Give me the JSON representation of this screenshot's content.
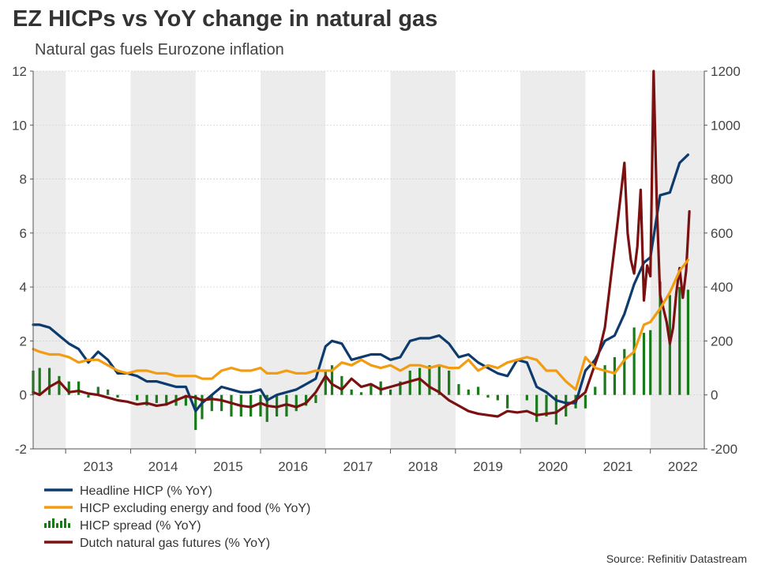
{
  "chart_data": {
    "type": "line",
    "title": "EZ HICPs vs YoY change in natural gas",
    "subtitle": "Natural gas fuels Eurozone inflation",
    "source": "Source: Refinitiv Datastream",
    "x_start": 2012.5,
    "x_end": 2022.83,
    "year_labels": [
      "2013",
      "2014",
      "2015",
      "2016",
      "2017",
      "2018",
      "2019",
      "2020",
      "2021",
      "2022"
    ],
    "shaded_years": [
      2012,
      2014,
      2016,
      2018,
      2020,
      2022
    ],
    "left_axis": {
      "ylim": [
        -2,
        12
      ],
      "ticks": [
        "-2",
        "0",
        "2",
        "4",
        "6",
        "8",
        "10",
        "12"
      ],
      "tick_values": [
        -2,
        0,
        2,
        4,
        6,
        8,
        10,
        12
      ]
    },
    "right_axis": {
      "ylim": [
        -200,
        1200
      ],
      "ticks": [
        "-200",
        "0",
        "200",
        "400",
        "600",
        "800",
        "1000",
        "1200"
      ],
      "tick_values": [
        -200,
        0,
        200,
        400,
        600,
        800,
        1000,
        1200
      ]
    },
    "series": [
      {
        "name": "Headline HICP (% YoY)",
        "axis": "left",
        "style": "line",
        "color": "#0d3b6e",
        "x": [
          2012.5,
          2012.6,
          2012.75,
          2012.9,
          2013.05,
          2013.2,
          2013.35,
          2013.5,
          2013.65,
          2013.8,
          2013.95,
          2014.1,
          2014.25,
          2014.4,
          2014.55,
          2014.7,
          2014.85,
          2015.0,
          2015.1,
          2015.25,
          2015.4,
          2015.55,
          2015.7,
          2015.85,
          2016.0,
          2016.1,
          2016.25,
          2016.4,
          2016.55,
          2016.7,
          2016.85,
          2017.0,
          2017.1,
          2017.25,
          2017.4,
          2017.55,
          2017.7,
          2017.85,
          2018.0,
          2018.15,
          2018.3,
          2018.45,
          2018.6,
          2018.75,
          2018.9,
          2019.05,
          2019.2,
          2019.35,
          2019.5,
          2019.65,
          2019.8,
          2019.95,
          2020.1,
          2020.25,
          2020.4,
          2020.55,
          2020.7,
          2020.85,
          2021.0,
          2021.15,
          2021.3,
          2021.45,
          2021.6,
          2021.75,
          2021.9,
          2022.0,
          2022.15,
          2022.3,
          2022.45,
          2022.58
        ],
        "values": [
          2.6,
          2.6,
          2.5,
          2.2,
          1.9,
          1.7,
          1.2,
          1.6,
          1.3,
          0.8,
          0.8,
          0.7,
          0.5,
          0.5,
          0.4,
          0.3,
          0.3,
          -0.6,
          -0.3,
          0.0,
          0.3,
          0.2,
          0.1,
          0.1,
          0.2,
          -0.2,
          0.0,
          0.1,
          0.2,
          0.4,
          0.6,
          1.8,
          2.0,
          1.9,
          1.3,
          1.4,
          1.5,
          1.5,
          1.3,
          1.4,
          2.0,
          2.1,
          2.1,
          2.2,
          1.9,
          1.4,
          1.5,
          1.2,
          1.0,
          0.8,
          0.7,
          1.3,
          1.2,
          0.3,
          0.1,
          -0.2,
          -0.3,
          -0.3,
          0.9,
          1.3,
          2.0,
          2.2,
          3.0,
          4.1,
          4.9,
          5.1,
          7.4,
          7.5,
          8.6,
          8.9
        ]
      },
      {
        "name": "HICP excluding energy and food (% YoY)",
        "axis": "left",
        "style": "line",
        "color": "#f39c12",
        "x": [
          2012.5,
          2012.6,
          2012.75,
          2012.9,
          2013.05,
          2013.2,
          2013.35,
          2013.5,
          2013.65,
          2013.8,
          2013.95,
          2014.1,
          2014.25,
          2014.4,
          2014.55,
          2014.7,
          2014.85,
          2015.0,
          2015.1,
          2015.25,
          2015.4,
          2015.55,
          2015.7,
          2015.85,
          2016.0,
          2016.1,
          2016.25,
          2016.4,
          2016.55,
          2016.7,
          2016.85,
          2017.0,
          2017.1,
          2017.25,
          2017.4,
          2017.55,
          2017.7,
          2017.85,
          2018.0,
          2018.15,
          2018.3,
          2018.45,
          2018.6,
          2018.75,
          2018.9,
          2019.05,
          2019.2,
          2019.35,
          2019.5,
          2019.65,
          2019.8,
          2019.95,
          2020.1,
          2020.25,
          2020.4,
          2020.55,
          2020.7,
          2020.85,
          2021.0,
          2021.15,
          2021.3,
          2021.45,
          2021.6,
          2021.75,
          2021.9,
          2022.0,
          2022.15,
          2022.3,
          2022.45,
          2022.58
        ],
        "values": [
          1.7,
          1.6,
          1.5,
          1.5,
          1.4,
          1.2,
          1.3,
          1.3,
          1.1,
          0.9,
          0.8,
          0.9,
          0.9,
          0.8,
          0.8,
          0.7,
          0.7,
          0.7,
          0.6,
          0.6,
          0.9,
          1.0,
          0.9,
          0.9,
          1.0,
          0.8,
          0.8,
          0.9,
          0.8,
          0.8,
          0.9,
          0.9,
          0.9,
          1.2,
          1.1,
          1.3,
          1.1,
          1.0,
          1.1,
          0.9,
          1.1,
          1.1,
          1.0,
          1.1,
          1.0,
          1.0,
          1.3,
          0.9,
          1.1,
          1.0,
          1.2,
          1.3,
          1.4,
          1.3,
          0.9,
          0.9,
          0.5,
          0.2,
          1.4,
          1.0,
          0.9,
          0.8,
          1.3,
          1.6,
          2.6,
          2.7,
          3.2,
          3.8,
          4.6,
          5.0
        ]
      },
      {
        "name": "HICP spread (% YoY)",
        "axis": "left",
        "style": "bar",
        "color": "#1a7a1a",
        "x": [
          2012.5,
          2012.6,
          2012.75,
          2012.9,
          2013.05,
          2013.2,
          2013.35,
          2013.5,
          2013.65,
          2013.8,
          2013.95,
          2014.1,
          2014.25,
          2014.4,
          2014.55,
          2014.7,
          2014.85,
          2015.0,
          2015.1,
          2015.25,
          2015.4,
          2015.55,
          2015.7,
          2015.85,
          2016.0,
          2016.1,
          2016.25,
          2016.4,
          2016.55,
          2016.7,
          2016.85,
          2017.0,
          2017.1,
          2017.25,
          2017.4,
          2017.55,
          2017.7,
          2017.85,
          2018.0,
          2018.15,
          2018.3,
          2018.45,
          2018.6,
          2018.75,
          2018.9,
          2019.05,
          2019.2,
          2019.35,
          2019.5,
          2019.65,
          2019.8,
          2019.95,
          2020.1,
          2020.25,
          2020.4,
          2020.55,
          2020.7,
          2020.85,
          2021.0,
          2021.15,
          2021.3,
          2021.45,
          2021.6,
          2021.75,
          2021.9,
          2022.0,
          2022.15,
          2022.3,
          2022.45,
          2022.58
        ],
        "values": [
          0.9,
          1.0,
          1.0,
          0.7,
          0.5,
          0.5,
          -0.1,
          0.3,
          0.2,
          -0.1,
          0.0,
          -0.2,
          -0.4,
          -0.3,
          -0.4,
          -0.4,
          -0.4,
          -1.3,
          -0.9,
          -0.6,
          -0.6,
          -0.8,
          -0.8,
          -0.8,
          -0.8,
          -1.0,
          -0.8,
          -0.8,
          -0.6,
          -0.4,
          -0.3,
          0.9,
          1.1,
          0.7,
          0.2,
          0.1,
          0.4,
          0.5,
          0.2,
          0.5,
          0.9,
          1.0,
          1.1,
          1.1,
          0.9,
          0.4,
          0.2,
          0.3,
          -0.1,
          -0.2,
          -0.5,
          0.0,
          -0.2,
          -1.0,
          -0.8,
          -1.1,
          -0.8,
          -0.5,
          -0.5,
          0.3,
          1.1,
          1.4,
          1.7,
          2.5,
          2.3,
          2.4,
          4.2,
          3.7,
          4.0,
          3.9
        ]
      },
      {
        "name": "Dutch natural gas futures (% YoY)",
        "axis": "right",
        "style": "line",
        "color": "#7b1010",
        "x": [
          2012.5,
          2012.6,
          2012.75,
          2012.9,
          2013.05,
          2013.2,
          2013.35,
          2013.5,
          2013.65,
          2013.8,
          2013.95,
          2014.1,
          2014.25,
          2014.4,
          2014.55,
          2014.7,
          2014.85,
          2015.0,
          2015.1,
          2015.25,
          2015.4,
          2015.55,
          2015.7,
          2015.85,
          2016.0,
          2016.1,
          2016.25,
          2016.4,
          2016.55,
          2016.7,
          2016.85,
          2017.0,
          2017.1,
          2017.25,
          2017.4,
          2017.55,
          2017.7,
          2017.85,
          2018.0,
          2018.15,
          2018.3,
          2018.45,
          2018.6,
          2018.75,
          2018.9,
          2019.05,
          2019.2,
          2019.35,
          2019.5,
          2019.65,
          2019.8,
          2019.95,
          2020.1,
          2020.25,
          2020.4,
          2020.55,
          2020.7,
          2020.85,
          2021.0,
          2021.1,
          2021.2,
          2021.3,
          2021.4,
          2021.5,
          2021.6,
          2021.65,
          2021.7,
          2021.75,
          2021.8,
          2021.85,
          2021.9,
          2021.95,
          2022.0,
          2022.05,
          2022.1,
          2022.15,
          2022.2,
          2022.25,
          2022.3,
          2022.35,
          2022.4,
          2022.45,
          2022.5,
          2022.55,
          2022.6
        ],
        "values": [
          10,
          0,
          30,
          50,
          10,
          15,
          5,
          0,
          -10,
          -20,
          -25,
          -35,
          -30,
          -40,
          -35,
          -20,
          -5,
          -10,
          -20,
          -15,
          -20,
          -30,
          -40,
          -45,
          -30,
          -40,
          -45,
          -35,
          -45,
          -30,
          10,
          70,
          40,
          20,
          60,
          30,
          40,
          20,
          30,
          40,
          50,
          60,
          30,
          10,
          -20,
          -40,
          -60,
          -70,
          -75,
          -80,
          -60,
          -65,
          -60,
          -75,
          -70,
          -65,
          -40,
          -20,
          10,
          80,
          150,
          250,
          450,
          650,
          860,
          600,
          500,
          450,
          550,
          760,
          350,
          480,
          440,
          1200,
          700,
          370,
          320,
          270,
          190,
          250,
          380,
          470,
          360,
          460,
          680
        ]
      }
    ]
  }
}
